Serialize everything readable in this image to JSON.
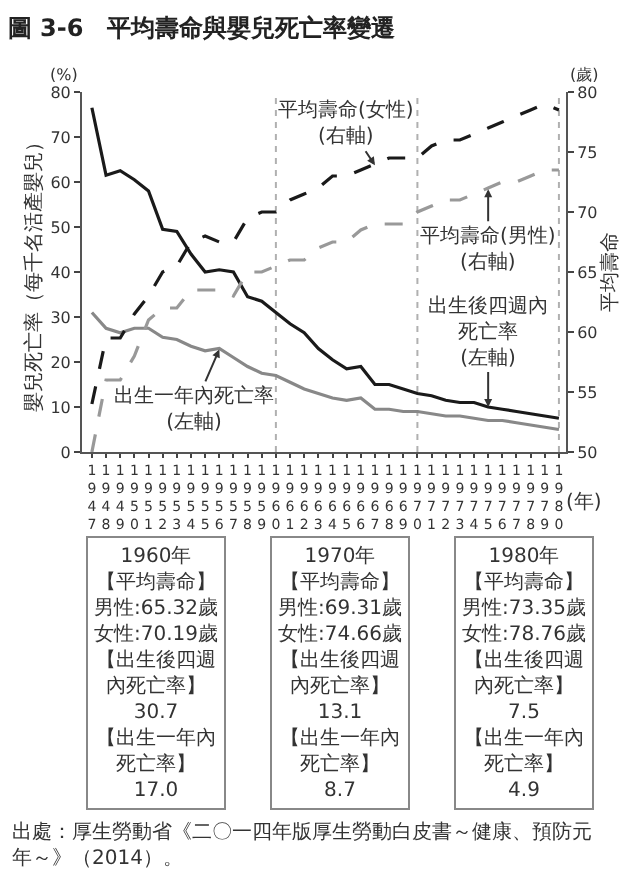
{
  "chart_data": {
    "type": "line",
    "title": "圖 3-6　平均壽命與嬰兒死亡率變遷",
    "xlabel": "(年)",
    "ylabel": "嬰兒死亡率（每千名活產嬰兒）",
    "y2label": "平均壽命",
    "x": [
      1947,
      1948,
      1949,
      1950,
      1951,
      1952,
      1953,
      1954,
      1955,
      1956,
      1957,
      1958,
      1959,
      1960,
      1961,
      1962,
      1963,
      1964,
      1965,
      1966,
      1967,
      1968,
      1969,
      1970,
      1971,
      1972,
      1973,
      1974,
      1975,
      1976,
      1977,
      1978,
      1979,
      1980
    ],
    "xlim": [
      1946.3,
      1980.5
    ],
    "xticks": [
      1947,
      1948,
      1949,
      1950,
      1951,
      1952,
      1953,
      1954,
      1955,
      1956,
      1957,
      1958,
      1959,
      1960,
      1961,
      1962,
      1963,
      1964,
      1965,
      1966,
      1967,
      1968,
      1969,
      1970,
      1971,
      1972,
      1973,
      1974,
      1975,
      1976,
      1977,
      1978,
      1979,
      1980
    ],
    "ylim": [
      0,
      80
    ],
    "yticks": [
      0,
      10,
      20,
      30,
      40,
      50,
      60,
      70,
      80
    ],
    "y2lim": [
      50,
      80
    ],
    "y2ticks": [
      50,
      55,
      60,
      65,
      70,
      75,
      80
    ],
    "marker": "none",
    "series": [
      {
        "name": "平均壽命(女性)\n(右軸)",
        "color": "#1a1a1a",
        "axis": "y2",
        "line_style": "dashed",
        "values": [
          54,
          59.5,
          59.5,
          61.5,
          63,
          65,
          65.5,
          67.5,
          68,
          67.5,
          67.5,
          69.5,
          70,
          70,
          71,
          71.5,
          72,
          73,
          73,
          73.5,
          74,
          74.5,
          74.5,
          74.5,
          75.5,
          76,
          76,
          76.5,
          77,
          77.5,
          78,
          78.5,
          79,
          78.5
        ]
      },
      {
        "name": "平均壽命(男性)\n(右軸)",
        "color": "#999999",
        "axis": "y2",
        "line_style": "dashed",
        "values": [
          50,
          56,
          56,
          58,
          61,
          62,
          62,
          63.5,
          63.5,
          63.5,
          63,
          65,
          65,
          65.5,
          66,
          66,
          67,
          67.5,
          67.5,
          68.5,
          69,
          69,
          69,
          70,
          70.5,
          71,
          71,
          71.5,
          72,
          72.5,
          72.5,
          73,
          73.5,
          73.5
        ]
      },
      {
        "name": "出生後四週內死亡率\n(左軸)",
        "color": "#1a1a1a",
        "line_style": "solid",
        "values": [
          76.5,
          61.5,
          62.5,
          60.5,
          58,
          49.5,
          49,
          44,
          40,
          40.5,
          40,
          34.5,
          33.5,
          31,
          28.5,
          26.5,
          23,
          20.5,
          18.5,
          19,
          15,
          15,
          14,
          13,
          12.5,
          11.5,
          11,
          11,
          10,
          9.5,
          9,
          8.5,
          8,
          7.5
        ]
      },
      {
        "name": "出生一年內死亡率\n(左軸)",
        "color": "#888888",
        "line_style": "solid",
        "values": [
          31,
          27.5,
          26.5,
          27.5,
          27.5,
          25.5,
          25,
          23.5,
          22.5,
          23,
          21,
          19,
          17.5,
          17,
          15.5,
          14,
          13,
          12,
          11.5,
          12,
          9.5,
          9.5,
          9,
          9,
          8.5,
          8,
          8,
          7.5,
          7,
          7,
          6.5,
          6,
          5.5,
          5
        ]
      }
    ],
    "ref_lines": [
      {
        "axis": "x",
        "value": 1960,
        "color": "#b0b0b0",
        "line_style": "dotted"
      },
      {
        "axis": "x",
        "value": 1970,
        "color": "#b0b0b0",
        "line_style": "dotted"
      },
      {
        "axis": "x",
        "value": 1980,
        "color": "#b0b0b0",
        "line_style": "dotted"
      }
    ],
    "annotations": [
      "(%)",
      "(歲)",
      "1960年【平均壽命】男性:65.32歲女性:70.19歲【出生後四週內死亡率】30.7【出生一年內死亡率】17.0",
      "1970年【平均壽命】男性:69.31歲女性:74.66歲【出生後四週內死亡率】13.1【出生一年內死亡率】8.7",
      "1980年【平均壽命】男性:73.35歲女性:78.76歲【出生後四週內死亡率】7.5【出生一年內死亡率】4.9",
      "出處：厚生勞動省《二〇一四年版厚生勞動白皮書～健康、預防元年～》（2014）。"
    ]
  }
}
